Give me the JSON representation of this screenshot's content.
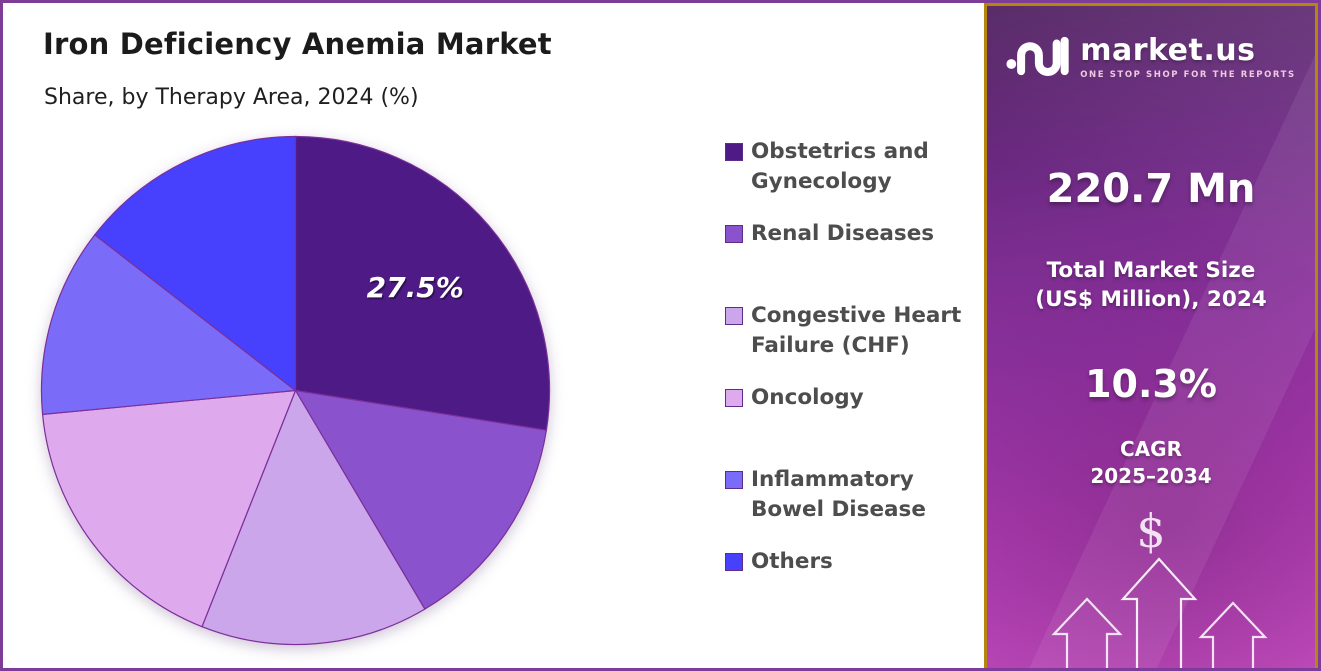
{
  "header": {
    "title": "Iron Deficiency Anemia Market",
    "subtitle": "Share, by Therapy Area, 2024 (%)"
  },
  "chart_data": {
    "type": "pie",
    "title": "Iron Deficiency Anemia Market — Share, by Therapy Area, 2024 (%)",
    "unit": "%",
    "start_angle_deg": 0,
    "direction": "clockwise",
    "legend_position": "right",
    "slices": [
      {
        "name": "Obstetrics and Gynecology",
        "value": 27.5,
        "color": "#4D1A86",
        "label": "27.5%"
      },
      {
        "name": "Renal Diseases",
        "value": 14.0,
        "color": "#8A52CC",
        "label": ""
      },
      {
        "name": "Congestive Heart Failure (CHF)",
        "value": 14.5,
        "color": "#CBA6EA",
        "label": ""
      },
      {
        "name": "Oncology",
        "value": 17.5,
        "color": "#DFA9EE",
        "label": ""
      },
      {
        "name": "Inflammatory Bowel Disease",
        "value": 12.0,
        "color": "#7A6CF8",
        "label": ""
      },
      {
        "name": "Others",
        "value": 14.5,
        "color": "#4740FD",
        "label": ""
      }
    ],
    "slice_stroke_color": "#7b2f98"
  },
  "legend": {
    "items": [
      {
        "label": "Obstetrics and Gynecology",
        "line1": "Obstetrics and",
        "line2": "Gynecology",
        "color": "#4D1A86"
      },
      {
        "label": "Renal Diseases",
        "line1": "Renal Diseases",
        "line2": "",
        "color": "#8A52CC"
      },
      {
        "label": "Congestive Heart Failure (CHF)",
        "line1": "Congestive Heart",
        "line2": "Failure (CHF)",
        "color": "#CBA6EA"
      },
      {
        "label": "Oncology",
        "line1": "Oncology",
        "line2": "",
        "color": "#DFA9EE"
      },
      {
        "label": "Inflammatory Bowel Disease",
        "line1": "Inflammatory",
        "line2": "Bowel Disease",
        "color": "#7A6CF8"
      },
      {
        "label": "Others",
        "line1": "Others",
        "line2": "",
        "color": "#4740FD"
      }
    ]
  },
  "sidebar": {
    "logo": {
      "brand": "market.us",
      "tagline": "ONE STOP SHOP FOR THE REPORTS"
    },
    "market_size": {
      "value": "220.7 Mn",
      "caption_line1": "Total Market Size",
      "caption_line2": "(US$ Million), 2024"
    },
    "cagr": {
      "value": "10.3%",
      "label_line1": "CAGR",
      "label_line2": "2025–2034"
    },
    "icons": {
      "dollar": "$"
    },
    "border_color": "#B5860B",
    "accent_gradient": [
      "#4f2060",
      "#8f32a0",
      "#c84fc2"
    ]
  },
  "frame": {
    "border_color": "#7D3C98",
    "background": "#FFFFFF"
  }
}
